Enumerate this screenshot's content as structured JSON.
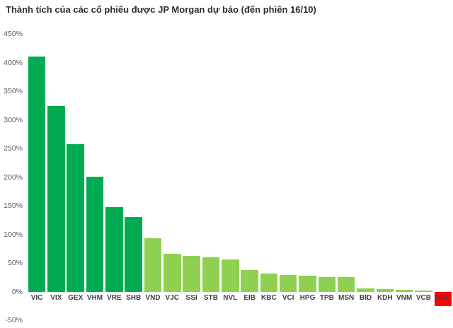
{
  "title": "Thành tích của các cổ phiếu được JP Morgan dự báo (đến phiên 16/10)",
  "chart_data": {
    "type": "bar",
    "title": "Thành tích của các cổ phiếu được JP Morgan dự báo (đến phiên 16/10)",
    "categories": [
      "VIC",
      "VIX",
      "GEX",
      "VHM",
      "VRE",
      "SHB",
      "VND",
      "VJC",
      "SSI",
      "STB",
      "NVL",
      "EIB",
      "KBC",
      "VCI",
      "HPG",
      "TPB",
      "MSN",
      "BID",
      "KDH",
      "VNM",
      "VCB",
      "DGC"
    ],
    "values": [
      412,
      325,
      258,
      202,
      148,
      131,
      94,
      67,
      63,
      61,
      57,
      38,
      32,
      30,
      28,
      26,
      26,
      6,
      5,
      4,
      3,
      -25
    ],
    "unit": "%",
    "bar_colors": [
      "#00ab52",
      "#00ab52",
      "#00ab52",
      "#00ab52",
      "#00ab52",
      "#00ab52",
      "#8ed04f",
      "#8ed04f",
      "#8ed04f",
      "#8ed04f",
      "#8ed04f",
      "#8ed04f",
      "#8ed04f",
      "#8ed04f",
      "#8ed04f",
      "#8ed04f",
      "#8ed04f",
      "#8ed04f",
      "#8ed04f",
      "#8ed04f",
      "#8ed04f",
      "#f90606"
    ],
    "color_meaning": {
      "#00ab52": "dark-green-large-gain",
      "#8ed04f": "light-green-moderate-gain",
      "#f90606": "red-loss"
    },
    "yticks": [
      "450%",
      "400%",
      "350%",
      "300%",
      "250%",
      "200%",
      "150%",
      "100%",
      "50%",
      "0%",
      "-50%"
    ],
    "ytick_values": [
      450,
      400,
      350,
      300,
      250,
      200,
      150,
      100,
      50,
      0,
      -50
    ],
    "ylim": [
      -50,
      450
    ],
    "xlabel": "",
    "ylabel": "",
    "grid": false,
    "legend": false
  }
}
